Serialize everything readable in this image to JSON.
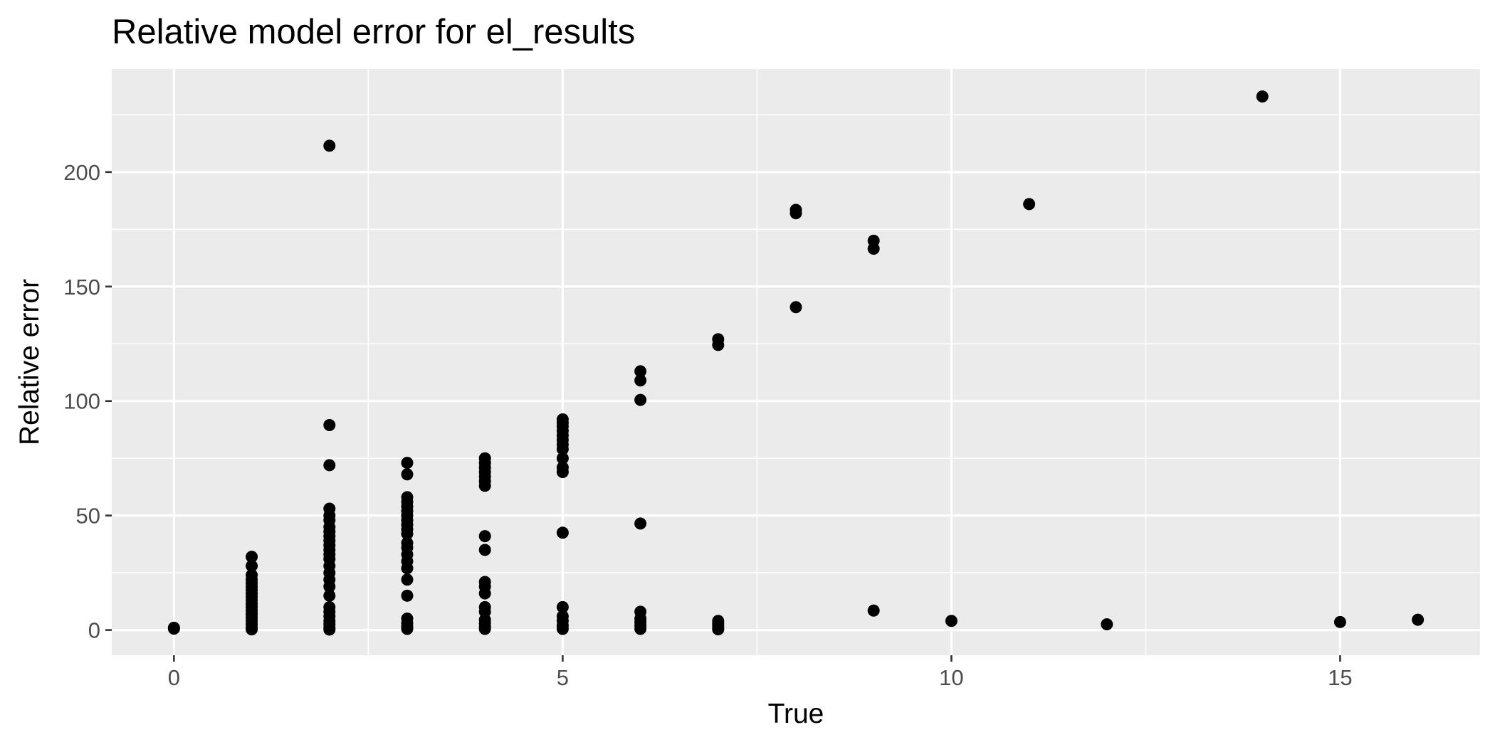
{
  "chart_data": {
    "type": "scatter",
    "title": "Relative model error for el_results",
    "xlabel": "True",
    "ylabel": "Relative error",
    "xlim": [
      -0.8,
      16.8
    ],
    "ylim": [
      -11,
      245
    ],
    "x_ticks": [
      0,
      5,
      10,
      15
    ],
    "x_tick_labels": [
      "0",
      "5",
      "10",
      "15"
    ],
    "y_ticks": [
      0,
      50,
      100,
      150,
      200
    ],
    "y_tick_labels": [
      "0",
      "50",
      "100",
      "150",
      "200"
    ],
    "x_minor_ticks": [
      2.5,
      7.5,
      12.5
    ],
    "y_minor_ticks": [
      25,
      75,
      125,
      175,
      225
    ],
    "grid": true,
    "legend": "none",
    "colors": {
      "panel_background": "#ebebeb",
      "grid": "#ffffff",
      "point": "#000000",
      "tick_text": "#4d4d4d"
    },
    "series": [
      {
        "points": [
          [
            0,
            0.6
          ],
          [
            0,
            1.0
          ],
          [
            1,
            0.3
          ],
          [
            1,
            1.0
          ],
          [
            1,
            2.5
          ],
          [
            1,
            4.0
          ],
          [
            1,
            5.5
          ],
          [
            1,
            7.0
          ],
          [
            1,
            8.5
          ],
          [
            1,
            10.0
          ],
          [
            1,
            11.5
          ],
          [
            1,
            13.0
          ],
          [
            1,
            14.5
          ],
          [
            1,
            16.0
          ],
          [
            1,
            17.5
          ],
          [
            1,
            19.0
          ],
          [
            1,
            20.5
          ],
          [
            1,
            22.0
          ],
          [
            1,
            24.0
          ],
          [
            1,
            28.0
          ],
          [
            1,
            32.0
          ],
          [
            2,
            0.2
          ],
          [
            2,
            1.0
          ],
          [
            2,
            2.5
          ],
          [
            2,
            4.0
          ],
          [
            2,
            6.0
          ],
          [
            2,
            8.0
          ],
          [
            2,
            10.0
          ],
          [
            2,
            15.0
          ],
          [
            2,
            19.0
          ],
          [
            2,
            22.0
          ],
          [
            2,
            25.0
          ],
          [
            2,
            28.0
          ],
          [
            2,
            31.0
          ],
          [
            2,
            33.0
          ],
          [
            2,
            35.0
          ],
          [
            2,
            37.0
          ],
          [
            2,
            39.0
          ],
          [
            2,
            41.0
          ],
          [
            2,
            43.0
          ],
          [
            2,
            45.0
          ],
          [
            2,
            48.0
          ],
          [
            2,
            50.0
          ],
          [
            2,
            53.0
          ],
          [
            2,
            72.0
          ],
          [
            2,
            89.5
          ],
          [
            2,
            211.5
          ],
          [
            3,
            0.5
          ],
          [
            3,
            1.5
          ],
          [
            3,
            3.0
          ],
          [
            3,
            5.0
          ],
          [
            3,
            15.0
          ],
          [
            3,
            22.0
          ],
          [
            3,
            27.0
          ],
          [
            3,
            30.0
          ],
          [
            3,
            33.0
          ],
          [
            3,
            36.0
          ],
          [
            3,
            38.0
          ],
          [
            3,
            42.0
          ],
          [
            3,
            44.0
          ],
          [
            3,
            46.0
          ],
          [
            3,
            48.0
          ],
          [
            3,
            50.0
          ],
          [
            3,
            52.0
          ],
          [
            3,
            54.0
          ],
          [
            3,
            56.0
          ],
          [
            3,
            58.0
          ],
          [
            3,
            68.0
          ],
          [
            3,
            73.0
          ],
          [
            4,
            0.5
          ],
          [
            4,
            1.5
          ],
          [
            4,
            3.0
          ],
          [
            4,
            4.5
          ],
          [
            4,
            8.0
          ],
          [
            4,
            10.0
          ],
          [
            4,
            16.0
          ],
          [
            4,
            19.0
          ],
          [
            4,
            21.0
          ],
          [
            4,
            35.0
          ],
          [
            4,
            41.0
          ],
          [
            4,
            63.0
          ],
          [
            4,
            65.0
          ],
          [
            4,
            67.0
          ],
          [
            4,
            69.0
          ],
          [
            4,
            71.0
          ],
          [
            4,
            73.0
          ],
          [
            4,
            75.0
          ],
          [
            5,
            0.5
          ],
          [
            5,
            2.0
          ],
          [
            5,
            4.0
          ],
          [
            5,
            6.0
          ],
          [
            5,
            10.0
          ],
          [
            5,
            42.5
          ],
          [
            5,
            69.0
          ],
          [
            5,
            71.0
          ],
          [
            5,
            75.0
          ],
          [
            5,
            79.0
          ],
          [
            5,
            81.0
          ],
          [
            5,
            83.0
          ],
          [
            5,
            85.0
          ],
          [
            5,
            87.0
          ],
          [
            5,
            89.0
          ],
          [
            5,
            90.5
          ],
          [
            5,
            92.0
          ],
          [
            6,
            0.5
          ],
          [
            6,
            2.0
          ],
          [
            6,
            3.5
          ],
          [
            6,
            5.0
          ],
          [
            6,
            8.0
          ],
          [
            6,
            46.5
          ],
          [
            6,
            100.5
          ],
          [
            6,
            109.0
          ],
          [
            6,
            113.0
          ],
          [
            7,
            0.3
          ],
          [
            7,
            1.0
          ],
          [
            7,
            2.0
          ],
          [
            7,
            3.0
          ],
          [
            7,
            4.0
          ],
          [
            7,
            124.5
          ],
          [
            7,
            127.0
          ],
          [
            8,
            141.0
          ],
          [
            8,
            182.0
          ],
          [
            8,
            183.5
          ],
          [
            9,
            8.5
          ],
          [
            9,
            166.5
          ],
          [
            9,
            170.0
          ],
          [
            10,
            4.0
          ],
          [
            11,
            186.0
          ],
          [
            12,
            2.5
          ],
          [
            14,
            233.0
          ],
          [
            15,
            3.5
          ],
          [
            16,
            4.5
          ]
        ]
      }
    ]
  }
}
